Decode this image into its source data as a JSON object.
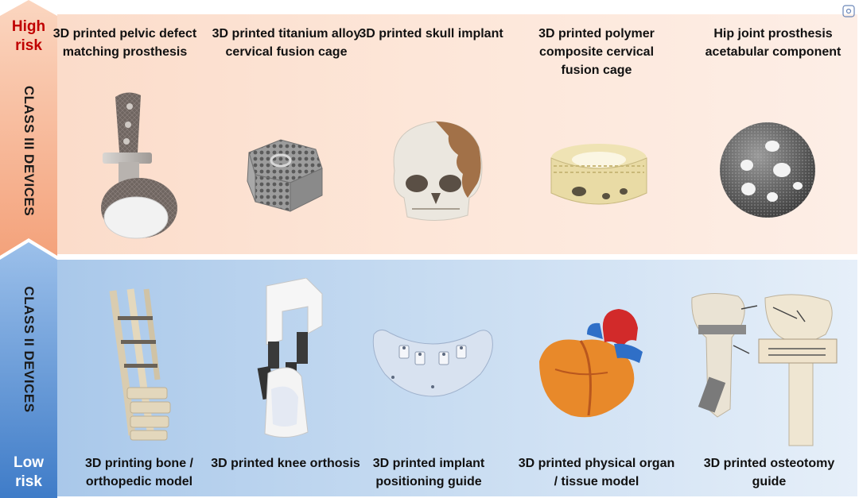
{
  "risk": {
    "high": "High risk",
    "low": "Low risk"
  },
  "classes": {
    "upper": "CLASS III DEVICES",
    "lower": "CLASS II DEVICES"
  },
  "class_iii_devices": [
    {
      "label": "3D printed pelvic defect matching prosthesis",
      "icon": "pelvic-prosthesis-icon"
    },
    {
      "label": "3D printed titanium alloy cervical fusion cage",
      "icon": "titanium-cage-icon"
    },
    {
      "label": "3D printed skull implant",
      "icon": "skull-implant-icon"
    },
    {
      "label": "3D printed polymer composite cervical fusion cage",
      "icon": "polymer-cage-icon"
    },
    {
      "label": "Hip joint prosthesis acetabular component",
      "icon": "acetabular-cup-icon"
    }
  ],
  "class_ii_devices": [
    {
      "label": "3D printing bone / orthopedic model",
      "icon": "spine-model-icon"
    },
    {
      "label": "3D printed knee orthosis",
      "icon": "knee-orthosis-icon"
    },
    {
      "label": "3D printed implant positioning guide",
      "icon": "implant-guide-icon"
    },
    {
      "label": "3D printed physical organ / tissue model",
      "icon": "heart-model-icon"
    },
    {
      "label": "3D printed osteotomy guide",
      "icon": "osteotomy-guide-icon"
    }
  ],
  "colors": {
    "high_risk": "#c00000",
    "class_iii_band": "#fbdcca",
    "class_iii_arrow": "#f4a27b",
    "class_ii_band": "#a9c8ea",
    "class_ii_arrow": "#4e88cf"
  }
}
